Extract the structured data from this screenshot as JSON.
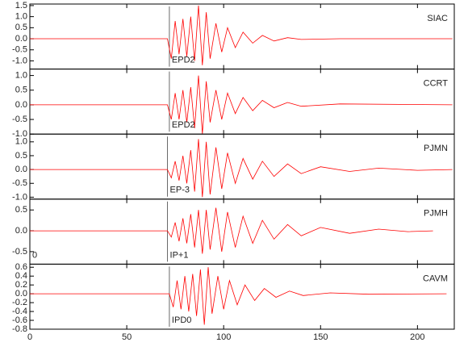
{
  "chart_data": [
    {
      "type": "line",
      "station": "SIAC",
      "phase": "EPD2",
      "pick": 72,
      "xlim": [
        0,
        219
      ],
      "ylim": [
        -1.37,
        1.57
      ],
      "yticks": [
        {
          "value": 1.5,
          "label": "1.5"
        },
        {
          "value": 1.0,
          "label": "1.0"
        },
        {
          "value": 0.5,
          "label": "0.5"
        },
        {
          "value": 0.0,
          "label": "0.0"
        },
        {
          "value": -0.5,
          "label": "-0.5"
        },
        {
          "value": -1.0,
          "label": "-1.0"
        }
      ],
      "x": [
        0,
        71,
        73,
        75,
        77,
        79,
        81,
        83,
        85,
        87,
        89,
        91,
        93,
        96,
        99,
        102,
        106,
        110,
        115,
        120,
        126,
        133,
        140,
        160,
        218
      ],
      "series": [
        {
          "color": "#ff0000",
          "values": [
            0,
            0,
            -0.9,
            0.8,
            -0.7,
            0.9,
            -0.8,
            1.0,
            -1.0,
            1.5,
            -1.2,
            1.2,
            -0.9,
            0.7,
            -0.6,
            0.5,
            -0.4,
            0.3,
            -0.2,
            0.15,
            -0.1,
            0.05,
            -0.03,
            0,
            0
          ]
        }
      ]
    },
    {
      "type": "line",
      "station": "CCRT",
      "phase": "EPD2",
      "pick": 72,
      "xlim": [
        0,
        219
      ],
      "ylim": [
        -1.0,
        1.22
      ],
      "yticks": [
        {
          "value": 1.0,
          "label": "1.0"
        },
        {
          "value": 0.5,
          "label": "0.5"
        },
        {
          "value": 0.0,
          "label": "0.0"
        },
        {
          "value": -0.5,
          "label": "-0.5"
        },
        {
          "value": -1.0,
          "label": "-1.0"
        }
      ],
      "x": [
        0,
        71,
        73,
        75,
        77,
        79,
        81,
        83,
        85,
        87,
        89,
        91,
        93,
        96,
        99,
        102,
        106,
        110,
        115,
        120,
        126,
        133,
        140,
        160,
        218
      ],
      "series": [
        {
          "color": "#ff0000",
          "values": [
            0,
            0,
            -0.5,
            0.4,
            -0.5,
            0.5,
            -0.6,
            0.6,
            -0.8,
            1.0,
            -1.0,
            0.8,
            -0.6,
            0.5,
            -0.5,
            0.4,
            -0.3,
            0.25,
            -0.2,
            0.15,
            -0.1,
            0.08,
            -0.05,
            0.03,
            0
          ]
        }
      ]
    },
    {
      "type": "line",
      "station": "PJMN",
      "phase": "EP-3",
      "pick": 71,
      "xlim": [
        0,
        219
      ],
      "ylim": [
        -1.07,
        1.28
      ],
      "yticks": [
        {
          "value": 1.0,
          "label": "1.0"
        },
        {
          "value": 0.5,
          "label": "0.5"
        },
        {
          "value": 0.0,
          "label": "0.0"
        },
        {
          "value": -0.5,
          "label": "-0.5"
        },
        {
          "value": -1.0,
          "label": "-1.0"
        }
      ],
      "x": [
        0,
        71,
        73,
        75,
        77,
        79,
        81,
        83,
        85,
        87,
        89,
        91,
        93,
        96,
        99,
        102,
        106,
        110,
        115,
        120,
        126,
        133,
        140,
        150,
        165,
        180,
        200,
        218
      ],
      "series": [
        {
          "color": "#ff0000",
          "values": [
            0,
            0,
            -0.3,
            0.3,
            -0.4,
            0.5,
            -0.5,
            0.7,
            -0.8,
            1.1,
            -1.0,
            1.0,
            -0.9,
            0.8,
            -0.7,
            0.6,
            -0.5,
            0.4,
            -0.35,
            0.3,
            -0.25,
            0.2,
            -0.15,
            0.1,
            -0.07,
            0.05,
            -0.03,
            0
          ]
        }
      ]
    },
    {
      "type": "line",
      "station": "PJMH",
      "phase": "IP+1",
      "corner_label": "0",
      "pick": 71,
      "xlim": [
        0,
        219
      ],
      "ylim": [
        -0.8,
        0.76
      ],
      "yticks": [
        {
          "value": 0.5,
          "label": "0.5"
        },
        {
          "value": 0.0,
          "label": "0.0"
        },
        {
          "value": -0.5,
          "label": "-0.5"
        }
      ],
      "x": [
        0,
        71,
        73,
        75,
        77,
        79,
        81,
        83,
        85,
        87,
        89,
        91,
        93,
        96,
        99,
        102,
        106,
        110,
        115,
        120,
        126,
        133,
        140,
        150,
        165,
        180,
        195,
        208
      ],
      "series": [
        {
          "color": "#ff0000",
          "values": [
            0,
            0,
            -0.15,
            0.2,
            -0.25,
            0.3,
            -0.3,
            0.4,
            -0.4,
            0.5,
            -0.55,
            0.5,
            -0.45,
            0.55,
            -0.5,
            0.45,
            -0.4,
            0.35,
            -0.3,
            0.25,
            -0.2,
            0.15,
            -0.12,
            0.08,
            -0.06,
            0.04,
            -0.02,
            0
          ]
        }
      ]
    },
    {
      "type": "line",
      "station": "CAVM",
      "phase": "IPD0",
      "pick": 72,
      "xlim": [
        0,
        219
      ],
      "ylim": [
        -0.8,
        0.67
      ],
      "yticks": [
        {
          "value": 0.6,
          "label": "0.6"
        },
        {
          "value": 0.4,
          "label": "0.4"
        },
        {
          "value": 0.2,
          "label": "0.2"
        },
        {
          "value": 0.0,
          "label": "0.0"
        },
        {
          "value": -0.2,
          "label": "-0.2"
        },
        {
          "value": -0.4,
          "label": "-0.4"
        },
        {
          "value": -0.6,
          "label": "-0.6"
        },
        {
          "value": -0.8,
          "label": "-0.8"
        }
      ],
      "xticks": [
        0,
        50,
        100,
        150,
        200
      ],
      "x": [
        0,
        72,
        74,
        76,
        78,
        80,
        82,
        84,
        86,
        88,
        90,
        92,
        94,
        97,
        100,
        103,
        107,
        111,
        116,
        121,
        127,
        134,
        141,
        155,
        175,
        215
      ],
      "series": [
        {
          "color": "#ff0000",
          "values": [
            0,
            0,
            -0.3,
            0.3,
            -0.35,
            0.4,
            -0.4,
            0.45,
            -0.5,
            0.55,
            -0.7,
            0.6,
            -0.45,
            0.4,
            -0.35,
            0.3,
            -0.25,
            0.2,
            -0.15,
            0.12,
            -0.08,
            0.06,
            -0.04,
            0.02,
            -0.01,
            0
          ]
        }
      ]
    }
  ]
}
